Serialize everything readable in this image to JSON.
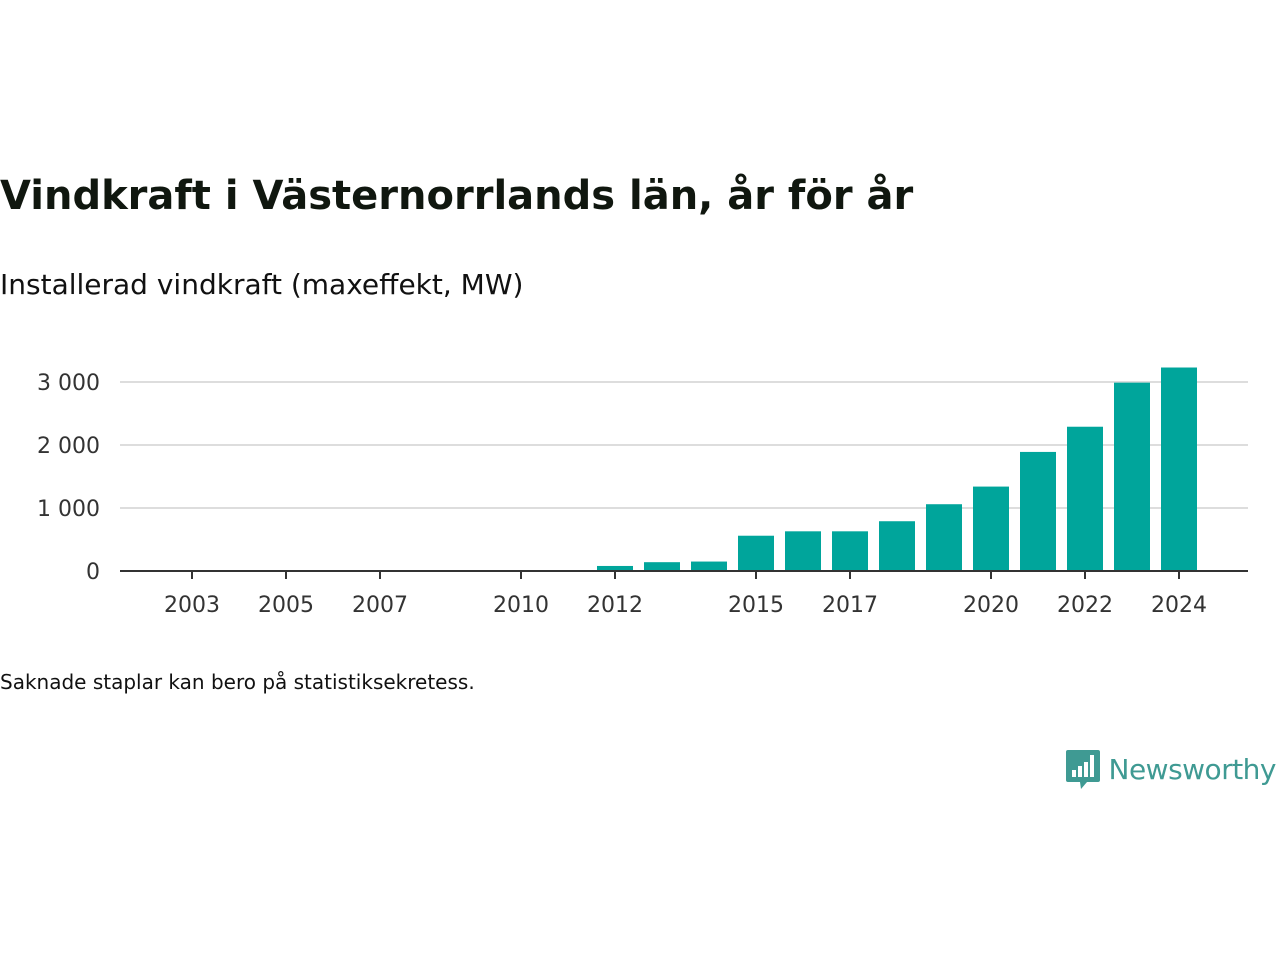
{
  "title": "Vindkraft i Västernorrlands län, år för år",
  "subtitle": "Installerad vindkraft (maxeffekt, MW)",
  "note": "Saknade staplar kan bero på statistiksekretess.",
  "brand": {
    "name": "Newsworthy",
    "logo_icon": "bar-chart-speech-bubble-icon",
    "color": "#3f9a93"
  },
  "chart_data": {
    "type": "bar",
    "x": [
      2003,
      2004,
      2005,
      2006,
      2007,
      2008,
      2009,
      2010,
      2011,
      2012,
      2013,
      2014,
      2015,
      2016,
      2017,
      2018,
      2019,
      2020,
      2021,
      2022,
      2023,
      2024
    ],
    "values": [
      2,
      2,
      2,
      3,
      3,
      3,
      5,
      8,
      10,
      80,
      140,
      150,
      560,
      630,
      630,
      790,
      1060,
      1340,
      1890,
      2290,
      2990,
      3230
    ],
    "x_tick_labels": [
      "2003",
      "2005",
      "2007",
      "2010",
      "2012",
      "2015",
      "2017",
      "2020",
      "2022",
      "2024"
    ],
    "y_ticks": [
      0,
      1000,
      2000,
      3000
    ],
    "y_tick_labels": [
      "0",
      "1 000",
      "2 000",
      "3 000"
    ],
    "ylim": [
      0,
      3300
    ],
    "grid": true,
    "bar_color": "#00a59b",
    "grid_color": "#dddddd",
    "axis_color": "#333333"
  }
}
